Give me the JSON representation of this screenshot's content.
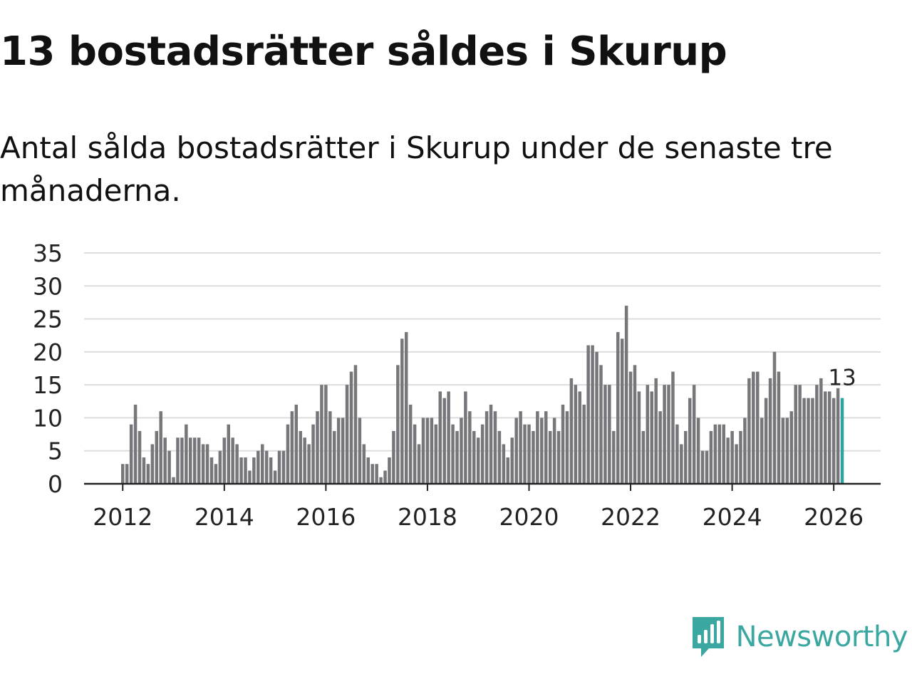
{
  "title": "13 bostadsrätter såldes i Skurup",
  "subtitle": "Antal sålda bostadsrätter i Skurup under de senaste tre månaderna.",
  "brand": {
    "name": "Newsworthy",
    "icon": "newsworthy-logo-icon"
  },
  "colors": {
    "bar": "#77767b",
    "highlight": "#2ba59e",
    "grid": "#dddddd",
    "axis": "#222222",
    "brand": "#3aa7a0"
  },
  "chart_data": {
    "type": "bar",
    "title": "",
    "xlabel": "",
    "ylabel": "",
    "ylim": [
      0,
      35
    ],
    "yticks": [
      0,
      5,
      10,
      15,
      20,
      25,
      30,
      35
    ],
    "xticks": [
      "2012",
      "2014",
      "2016",
      "2018",
      "2020",
      "2022",
      "2024",
      "2026"
    ],
    "grid": true,
    "start": "2012-01",
    "annotation": {
      "label": "13",
      "index": 170
    },
    "values": [
      3,
      3,
      9,
      12,
      8,
      4,
      3,
      6,
      8,
      11,
      7,
      5,
      1,
      7,
      7,
      9,
      7,
      7,
      7,
      6,
      6,
      4,
      3,
      5,
      7,
      9,
      7,
      6,
      4,
      4,
      2,
      4,
      5,
      6,
      5,
      4,
      2,
      5,
      5,
      9,
      11,
      12,
      8,
      7,
      6,
      9,
      11,
      15,
      15,
      11,
      8,
      10,
      10,
      15,
      17,
      18,
      10,
      6,
      4,
      3,
      3,
      1,
      2,
      4,
      8,
      18,
      22,
      23,
      12,
      9,
      6,
      10,
      10,
      10,
      9,
      14,
      13,
      14,
      9,
      8,
      10,
      14,
      11,
      8,
      7,
      9,
      11,
      12,
      11,
      8,
      6,
      4,
      7,
      10,
      11,
      9,
      9,
      8,
      11,
      10,
      11,
      8,
      10,
      8,
      12,
      11,
      16,
      15,
      14,
      12,
      21,
      21,
      20,
      18,
      15,
      15,
      8,
      23,
      22,
      27,
      17,
      18,
      14,
      8,
      15,
      14,
      16,
      11,
      15,
      15,
      17,
      9,
      6,
      8,
      13,
      15,
      10,
      5,
      5,
      8,
      9,
      9,
      9,
      7,
      8,
      6,
      8,
      10,
      16,
      17,
      17,
      10,
      13,
      16,
      20,
      17,
      10,
      10,
      11,
      15,
      15,
      13,
      13,
      13,
      15,
      16,
      14,
      14,
      13,
      14.5,
      13
    ]
  }
}
